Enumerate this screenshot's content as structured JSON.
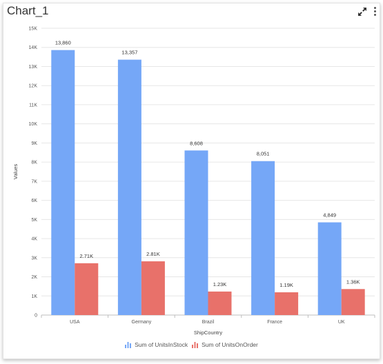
{
  "title": "Chart_1",
  "icons": {
    "expand": "expand-arrows-icon",
    "menu": "more-vertical-icon"
  },
  "colors": {
    "series1": "#75a7f7",
    "series2": "#e8716a",
    "grid": "#e6e6e6"
  },
  "chart_data": {
    "type": "bar",
    "title": "",
    "xlabel": "ShipCountry",
    "ylabel": "Values",
    "categories": [
      "USA",
      "Germany",
      "Brazil",
      "France",
      "UK"
    ],
    "ylim": [
      0,
      15000
    ],
    "yticks": [
      "0",
      "1K",
      "2K",
      "3K",
      "4K",
      "5K",
      "6K",
      "7K",
      "8K",
      "9K",
      "10K",
      "11K",
      "12K",
      "13K",
      "14K",
      "15K"
    ],
    "grid": true,
    "legend_position": "bottom",
    "series": [
      {
        "name": "Sum of UnitsInStock",
        "values": [
          13860,
          13357,
          8608,
          8051,
          4849
        ],
        "labels": [
          "13,860",
          "13,357",
          "8,608",
          "8,051",
          "4,849"
        ]
      },
      {
        "name": "Sum of UnitsOnOrder",
        "values": [
          2710,
          2810,
          1230,
          1190,
          1360
        ],
        "labels": [
          "2.71K",
          "2.81K",
          "1.23K",
          "1.19K",
          "1.36K"
        ]
      }
    ]
  }
}
